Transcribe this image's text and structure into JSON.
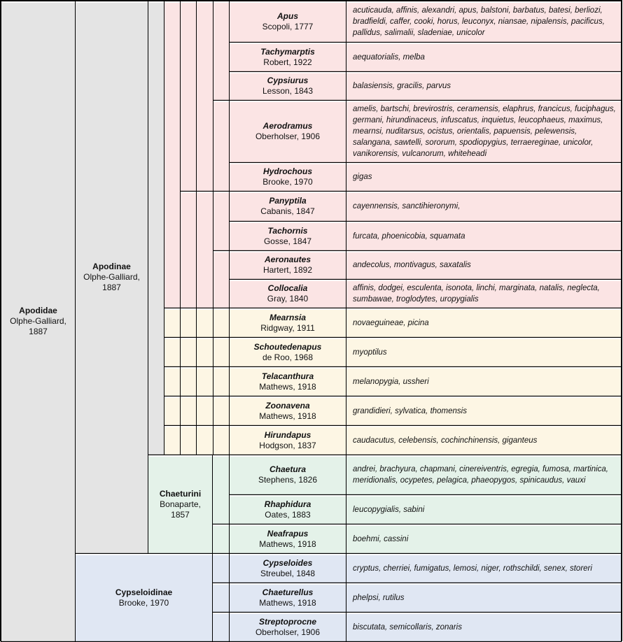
{
  "family": {
    "name": "Apodidae",
    "authority": "Olphe-Galliard, 1887"
  },
  "subfamilies": [
    {
      "name": "Apodinae",
      "authority": "Olphe-Galliard, 1887"
    },
    {
      "name": "Cypseloidinae",
      "authority": "Brooke, 1970"
    }
  ],
  "tribes": [
    {
      "name": "Chaeturini",
      "authority": "Bonaparte, 1857"
    }
  ],
  "colors": {
    "family": "#e4e4e4",
    "apodini_group": "#fbe4e4",
    "collocaliini_group": "#fdf6e4",
    "chaeturini": "#e4f2e9",
    "cypseloidinae": "#e0e7f3"
  },
  "genera": [
    {
      "name": "Apus",
      "authority": "Scopoli, 1777",
      "species": "acuticauda, affinis, alexandri, apus, balstoni, barbatus, batesi, berliozi, bradfieldi, caffer, cooki, horus, leuconyx, niansae, nipalensis, pacificus, pallidus, salimalii, sladeniae, unicolor"
    },
    {
      "name": "Tachymarptis",
      "authority": "Robert, 1922",
      "species": "aequatorialis, melba"
    },
    {
      "name": "Cypsiurus",
      "authority": "Lesson, 1843",
      "species": "balasiensis, gracilis, parvus"
    },
    {
      "name": "Aerodramus",
      "authority": "Oberholser, 1906",
      "species": "amelis, bartschi, brevirostris, ceramensis, elaphrus, francicus, fuciphagus, germani, hirundinaceus, infuscatus, inquietus, leucophaeus, maximus, mearnsi, nuditarsus, ocistus, orientalis, papuensis, pelewensis, salangana, sawtelli, sororum, spodiopygius, terraereginae, unicolor, vanikorensis, vulcanorum, whiteheadi"
    },
    {
      "name": "Hydrochous",
      "authority": "Brooke, 1970",
      "species": "gigas"
    },
    {
      "name": "Panyptila",
      "authority": "Cabanis, 1847",
      "species": "cayennensis, sanctihieronymi,"
    },
    {
      "name": "Tachornis",
      "authority": "Gosse, 1847",
      "species": "furcata, phoenicobia, squamata"
    },
    {
      "name": "Aeronautes",
      "authority": "Hartert, 1892",
      "species": "andecolus, montivagus, saxatalis"
    },
    {
      "name": "Collocalia",
      "authority": "Gray, 1840",
      "species": "affinis, dodgei, esculenta, isonota, linchi, marginata, natalis, neglecta, sumbawae, troglodytes, uropygialis"
    },
    {
      "name": "Mearnsia",
      "authority": "Ridgway, 1911",
      "species": "novaeguineae, picina"
    },
    {
      "name": "Schoutedenapus",
      "authority": "de Roo, 1968",
      "species": "myoptilus"
    },
    {
      "name": "Telacanthura",
      "authority": "Mathews, 1918",
      "species": "melanopygia, ussheri"
    },
    {
      "name": "Zoonavena",
      "authority": "Mathews, 1918",
      "species": "grandidieri, sylvatica, thomensis"
    },
    {
      "name": "Hirundapus",
      "authority": "Hodgson, 1837",
      "species": "caudacutus, celebensis, cochinchinensis, giganteus"
    },
    {
      "name": "Chaetura",
      "authority": "Stephens, 1826",
      "species": "andrei, brachyura, chapmani, cinereiventris, egregia, fumosa, martinica, meridionalis, ocypetes, pelagica, phaeopygos, spinicaudus, vauxi"
    },
    {
      "name": "Rhaphidura",
      "authority": "Oates, 1883",
      "species": "leucopygialis, sabini"
    },
    {
      "name": "Neafrapus",
      "authority": "Mathews, 1918",
      "species": "boehmi, cassini"
    },
    {
      "name": "Cypseloides",
      "authority": "Streubel, 1848",
      "species": "cryptus, cherriei, fumigatus, lemosi, niger, rothschildi, senex, storeri"
    },
    {
      "name": "Chaeturellus",
      "authority": "Mathews, 1918",
      "species": "phelpsi, rutilus"
    },
    {
      "name": "Streptoprocne",
      "authority": "Oberholser, 1906",
      "species": "biscutata, semicollaris, zonaris"
    }
  ]
}
